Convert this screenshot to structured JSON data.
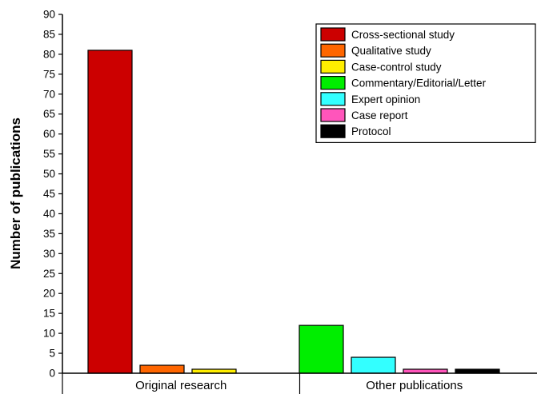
{
  "chart_data": {
    "type": "bar",
    "title": "",
    "xlabel": "",
    "ylabel": "Number of publications",
    "ylim": [
      0,
      90
    ],
    "ytick_step": 5,
    "grid": false,
    "legend_position": "top-right",
    "groups": [
      {
        "label": "Original research",
        "bars": [
          {
            "series": "Cross-sectional study",
            "value": 81
          },
          {
            "series": "Qualitative study",
            "value": 2
          },
          {
            "series": "Case-control study",
            "value": 1
          }
        ]
      },
      {
        "label": "Other publications",
        "bars": [
          {
            "series": "Commentary/Editorial/Letter",
            "value": 12
          },
          {
            "series": "Expert opinion",
            "value": 4
          },
          {
            "series": "Case report",
            "value": 1
          },
          {
            "series": "Protocol",
            "value": 1
          }
        ]
      }
    ],
    "series": [
      {
        "name": "Cross-sectional study",
        "color": "#cc0000"
      },
      {
        "name": "Qualitative study",
        "color": "#ff6600"
      },
      {
        "name": "Case-control study",
        "color": "#ffee00"
      },
      {
        "name": "Commentary/Editorial/Letter",
        "color": "#00ee00"
      },
      {
        "name": "Expert opinion",
        "color": "#33ffff"
      },
      {
        "name": "Case report",
        "color": "#ff55bb"
      },
      {
        "name": "Protocol",
        "color": "#000000"
      }
    ]
  }
}
